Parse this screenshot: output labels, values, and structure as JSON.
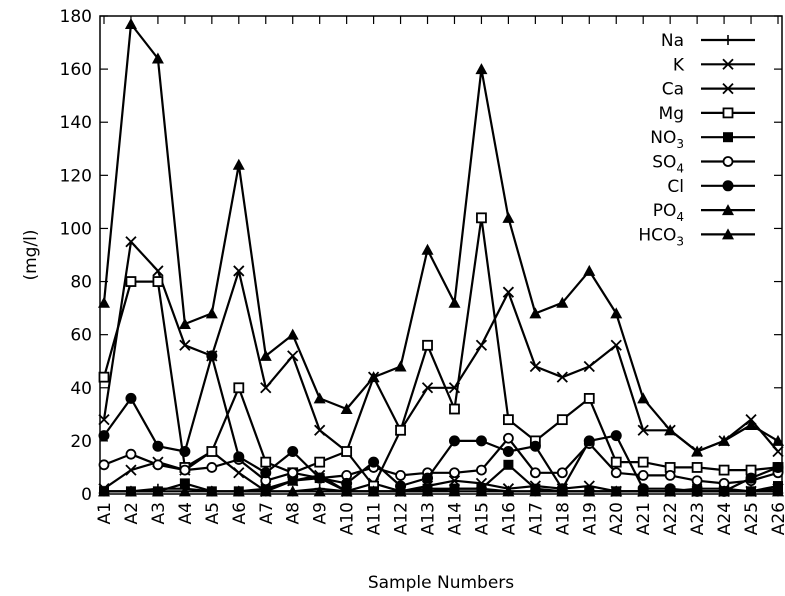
{
  "chart_data": {
    "type": "line",
    "xlabel": "Sample Numbers",
    "ylabel": "(mg/l)",
    "ylim": [
      0,
      180
    ],
    "yticks": [
      0,
      20,
      40,
      60,
      80,
      100,
      120,
      140,
      160,
      180
    ],
    "categories": [
      "A1",
      "A2",
      "A3",
      "A4",
      "A5",
      "A6",
      "A7",
      "A8",
      "A9",
      "A10",
      "A11",
      "A12",
      "A13",
      "A14",
      "A15",
      "A16",
      "A17",
      "A18",
      "A19",
      "A20",
      "A21",
      "A22",
      "A23",
      "A24",
      "A25",
      "A26"
    ],
    "grid": false,
    "legend_position": "top-right",
    "color": "#000000",
    "series": [
      {
        "name": "Na",
        "marker": "plus",
        "values": [
          1,
          1,
          2,
          2,
          1,
          1,
          1,
          1,
          2,
          1,
          1,
          1,
          1,
          2,
          2,
          1,
          1,
          1,
          1,
          1,
          1,
          1,
          1,
          1,
          1,
          1
        ]
      },
      {
        "name": "K",
        "marker": "x",
        "values": [
          2,
          9,
          12,
          9,
          16,
          8,
          1,
          5,
          7,
          1,
          4,
          1,
          3,
          5,
          4,
          2,
          3,
          2,
          3,
          1,
          1,
          1,
          1,
          1,
          1,
          2
        ]
      },
      {
        "name": "Ca",
        "marker": "x",
        "values": [
          28,
          95,
          84,
          56,
          52,
          84,
          40,
          52,
          24,
          16,
          44,
          24,
          40,
          40,
          56,
          76,
          48,
          44,
          48,
          56,
          24,
          24,
          16,
          20,
          28,
          16
        ]
      },
      {
        "name": "Mg",
        "marker": "box",
        "values": [
          44,
          80,
          80,
          10,
          16,
          40,
          12,
          8,
          12,
          16,
          3,
          24,
          56,
          32,
          104,
          28,
          20,
          28,
          36,
          12,
          12,
          10,
          10,
          9,
          9,
          10
        ]
      },
      {
        "name": "NO",
        "sub": "3",
        "marker": "square",
        "values": [
          1,
          1,
          1,
          4,
          1,
          1,
          2,
          5,
          6,
          1,
          1,
          1,
          2,
          2,
          2,
          11,
          2,
          1,
          1,
          1,
          1,
          1,
          2,
          2,
          1,
          3
        ]
      },
      {
        "name": "SO",
        "sub": "4",
        "marker": "circle",
        "values": [
          11,
          15,
          11,
          9,
          10,
          13,
          5,
          8,
          6,
          7,
          10,
          7,
          8,
          8,
          9,
          21,
          8,
          8,
          19,
          8,
          7,
          7,
          5,
          4,
          5,
          8
        ]
      },
      {
        "name": "Cl",
        "marker": "dot",
        "values": [
          22,
          36,
          18,
          16,
          52,
          14,
          8,
          16,
          6,
          4,
          12,
          3,
          6,
          20,
          20,
          16,
          18,
          2,
          20,
          22,
          2,
          2,
          1,
          1,
          6,
          10
        ]
      },
      {
        "name": "PO",
        "sub": "4",
        "marker": "triangle",
        "values": [
          1,
          1,
          1,
          1,
          1,
          1,
          1,
          1,
          1,
          1,
          1,
          1,
          1,
          1,
          1,
          1,
          1,
          1,
          1,
          1,
          1,
          1,
          1,
          1,
          1,
          1
        ]
      },
      {
        "name": "HCO",
        "sub": "3",
        "marker": "triangle",
        "values": [
          72,
          177,
          164,
          64,
          68,
          124,
          52,
          60,
          36,
          32,
          44,
          48,
          92,
          72,
          160,
          104,
          68,
          72,
          84,
          68,
          36,
          24,
          16,
          20,
          26,
          20
        ]
      }
    ]
  }
}
